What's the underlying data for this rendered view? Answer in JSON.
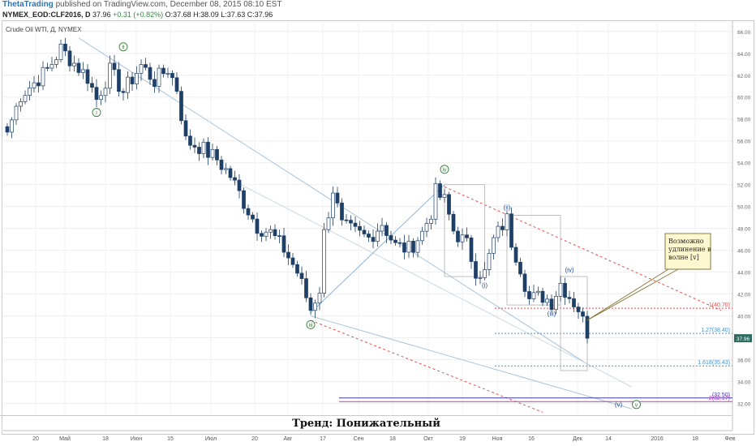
{
  "header": {
    "author": "ThetaTrading",
    "published": "published on TradingView.com, December 08, 2015 08:10 EST",
    "symbol": "NYMEX_EOD:CLF2016, D",
    "last": "37.96",
    "change": "+0.31 (+0.82%)",
    "ohlc": "O:37.68 H:38.09 L:37.63 C:37.96"
  },
  "chart_label": "Crude Oil WTI, Д, NYMEX",
  "trend_text": "Тренд: Понижательный",
  "chart_data": {
    "type": "candlestick",
    "yaxis": {
      "range": [
        31,
        66.8
      ],
      "ticks": [
        "66.00",
        "64.00",
        "62.00",
        "60.00",
        "58.00",
        "56.00",
        "54.00",
        "52.00",
        "50.00",
        "48.00",
        "46.00",
        "44.00",
        "42.00",
        "40.00",
        "38.00",
        "36.00",
        "34.00",
        "32.00"
      ],
      "last_price_label": "37.96"
    },
    "xaxis": {
      "tick_labels": [
        "20",
        "Май",
        "18",
        "Июн",
        "15",
        "Июл",
        "20",
        "Авг",
        "17",
        "Сен",
        "18",
        "Окт",
        "19",
        "Ноя",
        "16",
        "Дек",
        "14",
        "2016",
        "18",
        "Фев"
      ]
    },
    "grid": true,
    "close_path": [
      [
        0,
        56.8
      ],
      [
        3,
        60.2
      ],
      [
        6,
        61.3
      ],
      [
        9,
        62.5
      ],
      [
        12,
        64.4
      ],
      [
        15,
        63.1
      ],
      [
        18,
        61.8
      ],
      [
        20,
        59.8
      ],
      [
        23,
        62.4
      ],
      [
        26,
        60.5
      ],
      [
        30,
        62.9
      ],
      [
        33,
        61.5
      ],
      [
        36,
        62.6
      ],
      [
        38,
        60.8
      ],
      [
        40,
        56
      ],
      [
        43,
        55.5
      ],
      [
        47,
        54.3
      ],
      [
        50,
        52.8
      ],
      [
        53,
        50.4
      ],
      [
        56,
        48.2
      ],
      [
        59,
        47.6
      ],
      [
        62,
        46.1
      ],
      [
        65,
        44
      ],
      [
        68,
        40.6
      ],
      [
        70,
        42.5
      ],
      [
        71,
        47.5
      ],
      [
        73,
        51.6
      ],
      [
        75,
        48.2
      ],
      [
        78,
        47.6
      ],
      [
        81,
        47.1
      ],
      [
        84,
        48.5
      ],
      [
        87,
        46.4
      ],
      [
        90,
        46.1
      ],
      [
        93,
        47.6
      ],
      [
        95,
        49.5
      ],
      [
        96,
        51.3
      ],
      [
        98,
        50.5
      ],
      [
        100,
        47.8
      ],
      [
        103,
        46.5
      ],
      [
        105,
        44.2
      ],
      [
        107,
        43.9
      ],
      [
        109,
        46.9
      ],
      [
        111,
        48.3
      ],
      [
        112,
        48.8
      ],
      [
        113,
        46.8
      ],
      [
        115,
        44.5
      ],
      [
        117,
        41.5
      ],
      [
        120,
        41.8
      ],
      [
        122,
        41.3
      ],
      [
        124,
        43
      ],
      [
        126,
        41.8
      ],
      [
        128,
        40.7
      ],
      [
        129,
        39.5
      ],
      [
        130,
        37.96
      ]
    ],
    "wave_labels": [
      {
        "text": "i",
        "circled": true,
        "color": "#2e7d32"
      },
      {
        "text": "ii",
        "circled": true,
        "color": "#2e7d32"
      },
      {
        "text": "iii",
        "circled": true,
        "color": "#2e7d32"
      },
      {
        "text": "iv",
        "circled": true,
        "color": "#2e7d32"
      },
      {
        "text": "v",
        "circled": true,
        "color": "#2e7d32"
      },
      {
        "text": "(i)",
        "circled": false,
        "color": "#1f4e9e"
      },
      {
        "text": "(ii)",
        "circled": false,
        "color": "#1f4e9e"
      },
      {
        "text": "(iii)",
        "circled": false,
        "color": "#1f4e9e"
      },
      {
        "text": "(iv)",
        "circled": false,
        "color": "#1f4e9e"
      },
      {
        "text": "(v)",
        "circled": false,
        "color": "#1f4e9e"
      }
    ],
    "levels": [
      {
        "label": "1(40.70)",
        "value": 40.7,
        "color": "#e05050"
      },
      {
        "label": "1.27(38.40)",
        "value": 38.4,
        "color": "#4a90c8"
      },
      {
        "label": "1.618(35.43)",
        "value": 35.43,
        "color": "#4a90c8"
      },
      {
        "label": "(32.50)",
        "value": 32.5,
        "color": "#3a3aa0"
      },
      {
        "label": "2(32.17)",
        "value": 32.17,
        "color": "#b040b0"
      }
    ],
    "annotation": "Возможно удлинение в волне [v]"
  }
}
